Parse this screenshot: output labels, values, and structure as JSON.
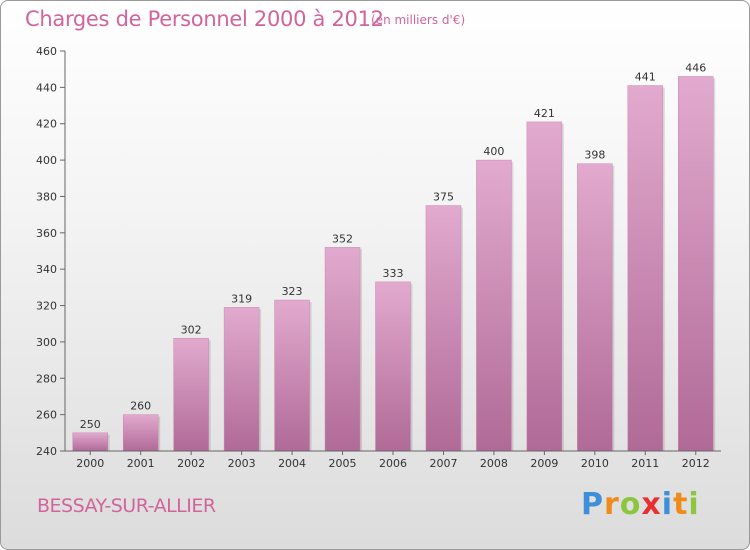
{
  "header": {
    "title": "Charges de Personnel 2000 à 2012",
    "subtitle": "(en milliers d'€)"
  },
  "footer": {
    "commune": "BESSAY-SUR-ALLIER",
    "brand_letters": [
      "P",
      "r",
      "o",
      "x",
      "i",
      "t",
      "i"
    ],
    "brand_colors": [
      "#3d8fd8",
      "#f08a1c",
      "#8cc63f",
      "#e8312f",
      "#3d8fd8",
      "#f08a1c",
      "#8cc63f"
    ]
  },
  "colors": {
    "bar_top": "#e2aace",
    "bar_bottom": "#b06a97",
    "axis_text": "#333333",
    "accent": "#d2649c"
  },
  "chart_data": {
    "type": "bar",
    "categories": [
      "2000",
      "2001",
      "2002",
      "2003",
      "2004",
      "2005",
      "2006",
      "2007",
      "2008",
      "2009",
      "2010",
      "2011",
      "2012"
    ],
    "values": [
      250,
      260,
      302,
      319,
      323,
      352,
      333,
      375,
      400,
      421,
      398,
      441,
      446
    ],
    "data_labels": [
      "250",
      "260",
      "302",
      "319",
      "323",
      "352",
      "333",
      "375",
      "400",
      "421",
      "398",
      "441",
      "446"
    ],
    "yticks": [
      "240",
      "260",
      "280",
      "300",
      "320",
      "340",
      "360",
      "380",
      "400",
      "420",
      "440",
      "460"
    ],
    "ylim": [
      240,
      460
    ],
    "grid": false,
    "title": "Charges de Personnel 2000 à 2012",
    "xlabel": "",
    "ylabel": ""
  }
}
